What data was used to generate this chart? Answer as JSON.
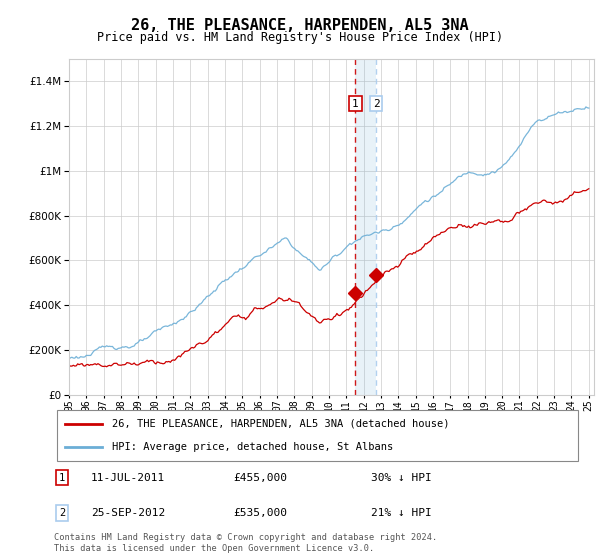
{
  "title": "26, THE PLEASANCE, HARPENDEN, AL5 3NA",
  "subtitle": "Price paid vs. HM Land Registry's House Price Index (HPI)",
  "legend_line1": "26, THE PLEASANCE, HARPENDEN, AL5 3NA (detached house)",
  "legend_line2": "HPI: Average price, detached house, St Albans",
  "transaction1_date": "11-JUL-2011",
  "transaction1_price": "£455,000",
  "transaction1_hpi": "30% ↓ HPI",
  "transaction1_year": 2011.53,
  "transaction1_value": 455000,
  "transaction2_date": "25-SEP-2012",
  "transaction2_price": "£535,000",
  "transaction2_hpi": "21% ↓ HPI",
  "transaction2_year": 2012.73,
  "transaction2_value": 535000,
  "hpi_color": "#6baed6",
  "price_color": "#cc0000",
  "grid_color": "#cccccc",
  "background_color": "#ffffff",
  "footer": "Contains HM Land Registry data © Crown copyright and database right 2024.\nThis data is licensed under the Open Government Licence v3.0."
}
